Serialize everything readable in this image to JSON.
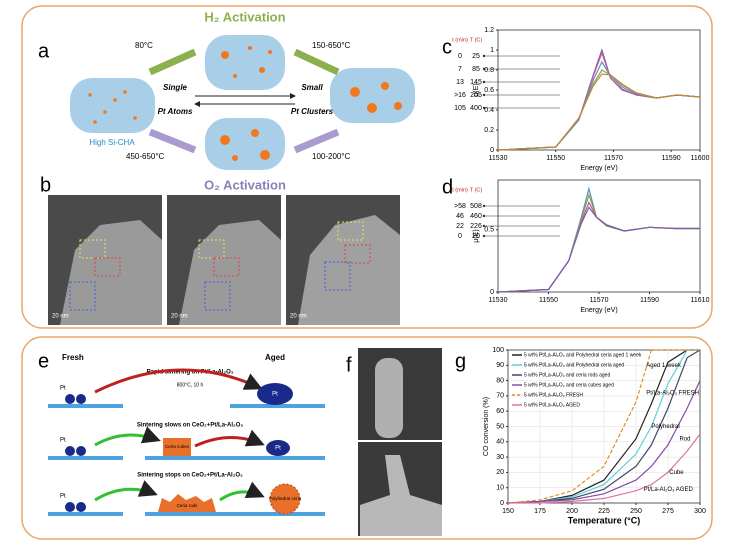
{
  "panel_a": {
    "label": "a",
    "h2": "H₂ Activation",
    "o2": "O₂ Activation",
    "t1": "80°C",
    "t2": "150-650°C",
    "t3": "450-650°C",
    "t4": "100-200°C",
    "single": [
      "Single",
      "Pt Atoms"
    ],
    "clusters": [
      "Small",
      "Pt Clusters"
    ],
    "support": "High Si-CHA"
  },
  "panel_b": {
    "label": "b",
    "scales": [
      "20 nm",
      "20 nm",
      "20 nm"
    ]
  },
  "panel_e": {
    "label": "e",
    "fresh": "Fresh",
    "aged": "Aged",
    "rows": [
      {
        "title": "Rapid sintering on Pt/La-Al₂O₃",
        "note": "800°C, 10 h",
        "pt": "Pt",
        "particle": "Pt",
        "ceria": ""
      },
      {
        "title": "Sintering slows on CeO₂+Pt/La-Al₂O₃",
        "note": "",
        "pt": "Pt",
        "particle": "Pt",
        "ceria": "Ceria cubes"
      },
      {
        "title": "Sintering stops on CeO₂+Pt/La-Al₂O₃",
        "note": "",
        "pt": "Pt",
        "particle": "Polyhedral ceria",
        "ceria": "Ceria rods"
      }
    ]
  },
  "panel_f": {
    "label": "f"
  },
  "chart_data": [
    {
      "type": "line",
      "label": "c",
      "xlabel": "Energy (eV)",
      "ylabel": "μ(E)",
      "legend_headers": [
        "t (min)",
        "T (C)"
      ],
      "xlim": [
        11530,
        11600
      ],
      "xticks": [
        11530,
        11550,
        11570,
        11590,
        11600
      ],
      "ylim": [
        0,
        1.2
      ],
      "yticks": [
        0,
        0.2,
        0.4,
        0.6,
        0.8,
        1,
        1.2
      ],
      "x": [
        11530,
        11550,
        11558,
        11563,
        11566,
        11569,
        11573,
        11578,
        11585,
        11592,
        11600
      ],
      "series": [
        {
          "name": "0",
          "temperature": "25",
          "color": "#7b5fa8",
          "values": [
            0,
            0.03,
            0.3,
            0.75,
            1.0,
            0.72,
            0.6,
            0.55,
            0.52,
            0.55,
            0.53
          ]
        },
        {
          "name": "7",
          "temperature": "85",
          "color": "#c05a9a",
          "values": [
            0,
            0.03,
            0.3,
            0.74,
            0.97,
            0.72,
            0.61,
            0.55,
            0.52,
            0.55,
            0.53
          ]
        },
        {
          "name": "13",
          "temperature": "145",
          "color": "#5a8fc0",
          "values": [
            0,
            0.03,
            0.3,
            0.7,
            0.88,
            0.74,
            0.63,
            0.56,
            0.52,
            0.55,
            0.53
          ]
        },
        {
          "name": ">16",
          "temperature": "205",
          "color": "#8aa04a",
          "values": [
            0,
            0.03,
            0.31,
            0.66,
            0.8,
            0.75,
            0.65,
            0.57,
            0.52,
            0.55,
            0.53
          ]
        },
        {
          "name": "105",
          "temperature": "400",
          "color": "#c08a3a",
          "values": [
            0,
            0.03,
            0.32,
            0.64,
            0.76,
            0.75,
            0.66,
            0.57,
            0.52,
            0.55,
            0.53
          ]
        }
      ]
    },
    {
      "type": "line",
      "label": "d",
      "xlabel": "Energy (eV)",
      "ylabel": "μ(E)",
      "legend_headers": [
        "t (min)",
        "T (C)"
      ],
      "xlim": [
        11530,
        11610
      ],
      "xticks": [
        11530,
        11550,
        11570,
        11590,
        11610
      ],
      "ylim": [
        0,
        0.9
      ],
      "yticks": [
        0,
        0.5
      ],
      "x": [
        11530,
        11550,
        11558,
        11563,
        11566,
        11569,
        11573,
        11580,
        11590,
        11600,
        11610
      ],
      "series": [
        {
          "name": ">58",
          "temperature": "508",
          "color": "#5a8fc0",
          "values": [
            0,
            0.02,
            0.25,
            0.6,
            0.83,
            0.6,
            0.53,
            0.49,
            0.52,
            0.51,
            0.51
          ]
        },
        {
          "name": "46",
          "temperature": "460",
          "color": "#8aa04a",
          "values": [
            0,
            0.02,
            0.25,
            0.58,
            0.78,
            0.6,
            0.53,
            0.49,
            0.52,
            0.51,
            0.51
          ]
        },
        {
          "name": "22",
          "temperature": "226",
          "color": "#c05a9a",
          "values": [
            0,
            0.02,
            0.25,
            0.56,
            0.72,
            0.6,
            0.54,
            0.49,
            0.52,
            0.51,
            0.51
          ]
        },
        {
          "name": "0",
          "temperature": "20",
          "color": "#7b5fa8",
          "values": [
            0,
            0.02,
            0.25,
            0.55,
            0.68,
            0.6,
            0.54,
            0.49,
            0.52,
            0.51,
            0.51
          ]
        }
      ]
    },
    {
      "type": "line",
      "label": "g",
      "xlabel": "Temperature (°C)",
      "ylabel": "CO conversion (%)",
      "grid": true,
      "xlim": [
        150,
        300
      ],
      "xticks": [
        150,
        175,
        200,
        225,
        250,
        275,
        300
      ],
      "ylim": [
        0,
        100
      ],
      "yticks": [
        0,
        10,
        20,
        30,
        40,
        50,
        60,
        70,
        80,
        90,
        100
      ],
      "x": [
        150,
        175,
        200,
        225,
        250,
        262,
        275,
        290,
        300
      ],
      "series": [
        {
          "name": "5 wt% Pt/La-Al₂O₃ and Polyhedral ceria aged 1 week",
          "color": "#222222",
          "dash": false,
          "values": [
            0,
            1,
            5,
            15,
            42,
            65,
            92,
            100,
            100
          ]
        },
        {
          "name": "5 wt% Pt/La-Al₂O₃ and Polyhedral ceria aged",
          "color": "#5fd0d8",
          "dash": false,
          "values": [
            0,
            1,
            4,
            12,
            32,
            50,
            78,
            100,
            100
          ]
        },
        {
          "name": "5 wt% Pt/La-Al₂O₃ and ceria rods aged",
          "color": "#3a4a6a",
          "dash": false,
          "values": [
            0,
            1,
            3,
            9,
            24,
            38,
            62,
            95,
            100
          ]
        },
        {
          "name": "5 wt% Pt/La-Al₂O₃ and ceria cubes aged",
          "color": "#8a4aa8",
          "dash": false,
          "values": [
            0,
            1,
            2,
            6,
            15,
            24,
            38,
            62,
            80
          ]
        },
        {
          "name": "5 wt% Pt/La-Al₂O₃ FRESH",
          "color": "#e0902a",
          "dash": true,
          "values": [
            0,
            2,
            8,
            24,
            66,
            100,
            100,
            100,
            100
          ]
        },
        {
          "name": "5 wt% Pt/La-Al₂O₃ AGED",
          "color": "#e070a8",
          "dash": false,
          "values": [
            0,
            0,
            1,
            3,
            8,
            12,
            20,
            34,
            45
          ]
        }
      ],
      "annotations": [
        "Pt/La-Al₂O₃ FRESH",
        "Aged 1 week",
        "Polyhedral",
        "Rod",
        "Cube",
        "Pt/La-Al₂O₃ AGED"
      ]
    }
  ]
}
